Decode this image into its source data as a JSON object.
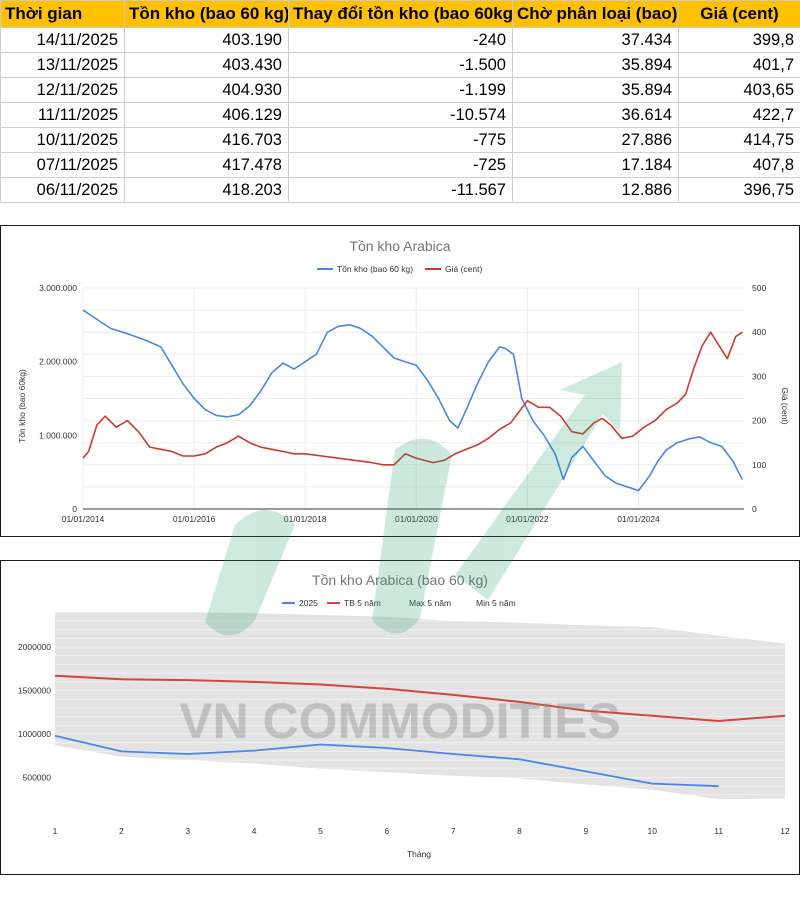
{
  "table": {
    "headers": [
      "Thời gian",
      "Tồn kho (bao 60 kg)",
      "Thay đổi tồn kho (bao 60kg)",
      "Chờ phân loại (bao)",
      "Giá (cent)"
    ],
    "rows": [
      [
        "14/11/2025",
        "403.190",
        "-240",
        "37.434",
        "399,8"
      ],
      [
        "13/11/2025",
        "403.430",
        "-1.500",
        "35.894",
        "401,7"
      ],
      [
        "12/11/2025",
        "404.930",
        "-1.199",
        "35.894",
        "403,65"
      ],
      [
        "11/11/2025",
        "406.129",
        "-10.574",
        "36.614",
        "422,7"
      ],
      [
        "10/11/2025",
        "416.703",
        "-775",
        "27.886",
        "414,75"
      ],
      [
        "07/11/2025",
        "417.478",
        "-725",
        "17.184",
        "407,8"
      ],
      [
        "06/11/2025",
        "418.203",
        "-11.567",
        "12.886",
        "396,75"
      ]
    ]
  },
  "watermark": {
    "text": "VN COMMODITIES"
  },
  "chart_data": [
    {
      "type": "line",
      "title": "Tồn kho Arabica",
      "ylabel": "Tồn kho (bao 60kg)",
      "y2label": "Giá (cent)",
      "ylim": [
        0,
        3000000
      ],
      "y2lim": [
        0,
        500
      ],
      "yticks": [
        "0",
        "1.000.000",
        "2.000.000",
        "3.000.000"
      ],
      "y2ticks": [
        "0",
        "100",
        "200",
        "300",
        "400",
        "500"
      ],
      "xticks": [
        "01/01/2014",
        "01/01/2016",
        "01/01/2018",
        "01/01/2020",
        "01/01/2022",
        "01/01/2024"
      ],
      "xrange": [
        2014.0,
        2025.9
      ],
      "legend": "top",
      "grid": true,
      "series": [
        {
          "name": "Tồn kho (bao 60 kg)",
          "color": "#4a86e8",
          "axis": "left",
          "x": [
            2014.0,
            2014.2,
            2014.5,
            2014.8,
            2015.1,
            2015.4,
            2015.6,
            2015.8,
            2016.0,
            2016.2,
            2016.4,
            2016.6,
            2016.8,
            2017.0,
            2017.2,
            2017.4,
            2017.6,
            2017.8,
            2018.0,
            2018.2,
            2018.4,
            2018.6,
            2018.8,
            2019.0,
            2019.2,
            2019.4,
            2019.6,
            2019.8,
            2020.0,
            2020.2,
            2020.4,
            2020.6,
            2020.75,
            2020.9,
            2021.1,
            2021.3,
            2021.5,
            2021.6,
            2021.75,
            2021.9,
            2022.1,
            2022.3,
            2022.5,
            2022.65,
            2022.8,
            2023.0,
            2023.2,
            2023.4,
            2023.6,
            2023.8,
            2024.0,
            2024.2,
            2024.35,
            2024.5,
            2024.7,
            2024.9,
            2025.1,
            2025.3,
            2025.5,
            2025.7,
            2025.87
          ],
          "values": [
            2700000,
            2600000,
            2450000,
            2380000,
            2300000,
            2200000,
            1950000,
            1700000,
            1500000,
            1350000,
            1270000,
            1250000,
            1280000,
            1400000,
            1600000,
            1850000,
            1980000,
            1900000,
            2000000,
            2100000,
            2400000,
            2480000,
            2500000,
            2450000,
            2350000,
            2200000,
            2050000,
            2000000,
            1950000,
            1750000,
            1500000,
            1200000,
            1100000,
            1350000,
            1700000,
            2000000,
            2200000,
            2180000,
            2100000,
            1500000,
            1200000,
            1000000,
            750000,
            400000,
            700000,
            850000,
            650000,
            450000,
            350000,
            300000,
            250000,
            450000,
            650000,
            800000,
            900000,
            950000,
            980000,
            900000,
            850000,
            650000,
            400000
          ]
        },
        {
          "name": "Giá (cent)",
          "color": "#cc3a2f",
          "axis": "right",
          "x": [
            2014.0,
            2014.1,
            2014.25,
            2014.4,
            2014.6,
            2014.8,
            2015.0,
            2015.2,
            2015.4,
            2015.6,
            2015.8,
            2016.0,
            2016.2,
            2016.4,
            2016.6,
            2016.8,
            2017.0,
            2017.2,
            2017.4,
            2017.6,
            2017.8,
            2018.0,
            2018.3,
            2018.6,
            2018.9,
            2019.2,
            2019.4,
            2019.6,
            2019.8,
            2020.0,
            2020.15,
            2020.3,
            2020.5,
            2020.7,
            2020.9,
            2021.1,
            2021.3,
            2021.5,
            2021.7,
            2021.85,
            2022.0,
            2022.2,
            2022.4,
            2022.6,
            2022.8,
            2023.0,
            2023.2,
            2023.35,
            2023.5,
            2023.7,
            2023.9,
            2024.1,
            2024.3,
            2024.5,
            2024.7,
            2024.85,
            2025.0,
            2025.15,
            2025.3,
            2025.45,
            2025.6,
            2025.75,
            2025.87
          ],
          "values": [
            115,
            130,
            190,
            210,
            185,
            200,
            175,
            140,
            135,
            130,
            120,
            120,
            125,
            140,
            150,
            165,
            150,
            140,
            135,
            130,
            125,
            125,
            120,
            115,
            110,
            105,
            100,
            100,
            125,
            115,
            110,
            105,
            110,
            125,
            135,
            145,
            160,
            180,
            195,
            220,
            245,
            230,
            230,
            210,
            175,
            170,
            195,
            205,
            190,
            160,
            165,
            185,
            200,
            225,
            240,
            260,
            320,
            370,
            400,
            370,
            340,
            390,
            400
          ]
        }
      ]
    },
    {
      "type": "line",
      "title": "Tồn kho Arabica (bao 60 kg)",
      "xlabel": "Tháng",
      "categories": [
        "1",
        "2",
        "3",
        "4",
        "5",
        "6",
        "7",
        "8",
        "9",
        "10",
        "11",
        "12"
      ],
      "yticks": [
        "500000",
        "1000000",
        "1500000",
        "2000000"
      ],
      "ylim": [
        0,
        2300000
      ],
      "legend": "top",
      "series": [
        {
          "name": "2025",
          "color": "#4a86e8",
          "values": [
            980000,
            800000,
            770000,
            810000,
            880000,
            840000,
            770000,
            710000,
            570000,
            430000,
            400000,
            null
          ]
        },
        {
          "name": "TB 5 năm",
          "color": "#d44638",
          "values": [
            1670000,
            1630000,
            1620000,
            1600000,
            1570000,
            1520000,
            1450000,
            1370000,
            1270000,
            1210000,
            1150000,
            1210000
          ]
        },
        {
          "name": "Max 5 năm",
          "color": "#cccccc",
          "values": [
            2400000,
            2400000,
            2400000,
            2390000,
            2370000,
            2350000,
            2300000,
            2280000,
            2250000,
            2230000,
            2130000,
            2040000
          ]
        },
        {
          "name": "Min 5 năm",
          "color": "#cccccc",
          "values": [
            870000,
            740000,
            700000,
            660000,
            600000,
            560000,
            520000,
            490000,
            420000,
            360000,
            250000,
            260000
          ]
        }
      ]
    }
  ]
}
